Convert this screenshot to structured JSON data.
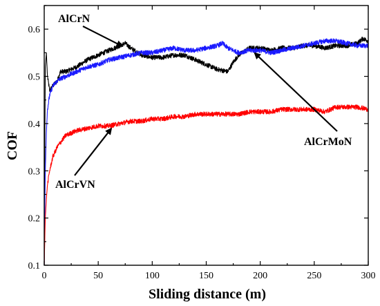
{
  "chart_data": {
    "type": "line",
    "title": "",
    "xlabel": "Sliding distance (m)",
    "ylabel": "COF",
    "xlim": [
      0,
      300
    ],
    "ylim": [
      0.1,
      0.65
    ],
    "xticks": [
      0,
      50,
      100,
      150,
      200,
      250,
      300
    ],
    "yticks": [
      0.1,
      0.2,
      0.3,
      0.4,
      0.5,
      0.6
    ],
    "xtick_labels": [
      "0",
      "50",
      "100",
      "150",
      "200",
      "250",
      "300"
    ],
    "ytick_labels": [
      "0.1",
      "0.2",
      "0.3",
      "0.4",
      "0.5",
      "0.6"
    ],
    "grid": false,
    "series": [
      {
        "name": "AlCrN",
        "color": "#000000",
        "x": [
          0,
          1,
          2,
          3,
          5,
          8,
          12,
          15,
          20,
          30,
          40,
          50,
          60,
          70,
          75,
          80,
          90,
          100,
          110,
          120,
          130,
          140,
          150,
          160,
          170,
          175,
          180,
          190,
          200,
          210,
          220,
          230,
          240,
          250,
          260,
          270,
          280,
          290,
          295,
          300
        ],
        "values": [
          0.1,
          0.52,
          0.55,
          0.5,
          0.47,
          0.48,
          0.49,
          0.51,
          0.51,
          0.52,
          0.535,
          0.545,
          0.555,
          0.565,
          0.57,
          0.56,
          0.545,
          0.54,
          0.54,
          0.545,
          0.545,
          0.535,
          0.525,
          0.515,
          0.51,
          0.53,
          0.545,
          0.56,
          0.56,
          0.555,
          0.56,
          0.56,
          0.565,
          0.565,
          0.56,
          0.565,
          0.565,
          0.57,
          0.58,
          0.575
        ]
      },
      {
        "name": "AlCrMoN",
        "color": "#1a1aff",
        "x": [
          0,
          1,
          2,
          3,
          5,
          8,
          12,
          15,
          20,
          30,
          40,
          50,
          60,
          70,
          80,
          90,
          100,
          110,
          120,
          130,
          140,
          150,
          160,
          165,
          170,
          180,
          190,
          200,
          210,
          220,
          230,
          240,
          250,
          260,
          270,
          280,
          290,
          300
        ],
        "values": [
          0.1,
          0.3,
          0.38,
          0.43,
          0.46,
          0.48,
          0.49,
          0.495,
          0.5,
          0.51,
          0.52,
          0.525,
          0.535,
          0.54,
          0.545,
          0.55,
          0.55,
          0.555,
          0.56,
          0.555,
          0.555,
          0.56,
          0.565,
          0.57,
          0.56,
          0.55,
          0.555,
          0.555,
          0.55,
          0.555,
          0.56,
          0.565,
          0.57,
          0.575,
          0.575,
          0.57,
          0.565,
          0.565
        ]
      },
      {
        "name": "AlCrVN",
        "color": "#ff0000",
        "x": [
          0,
          1,
          2,
          3,
          5,
          8,
          12,
          15,
          20,
          30,
          40,
          50,
          60,
          70,
          80,
          90,
          100,
          110,
          120,
          130,
          140,
          150,
          160,
          170,
          180,
          190,
          200,
          210,
          220,
          230,
          240,
          250,
          260,
          270,
          280,
          290,
          300
        ],
        "values": [
          0.1,
          0.2,
          0.24,
          0.27,
          0.3,
          0.33,
          0.35,
          0.36,
          0.375,
          0.385,
          0.39,
          0.395,
          0.395,
          0.4,
          0.405,
          0.405,
          0.41,
          0.41,
          0.415,
          0.415,
          0.42,
          0.42,
          0.42,
          0.42,
          0.42,
          0.425,
          0.425,
          0.425,
          0.43,
          0.43,
          0.43,
          0.43,
          0.425,
          0.435,
          0.435,
          0.435,
          0.43
        ]
      }
    ],
    "annotations": [
      {
        "text": "AlCrN",
        "series": "AlCrN",
        "arrow_to_x": 72,
        "arrow_to_y": 0.57
      },
      {
        "text": "AlCrMoN",
        "series": "AlCrMoN",
        "arrow_to_x": 195,
        "arrow_to_y": 0.555
      },
      {
        "text": "AlCrVN",
        "series": "AlCrVN",
        "arrow_to_x": 62,
        "arrow_to_y": 0.395
      }
    ]
  }
}
